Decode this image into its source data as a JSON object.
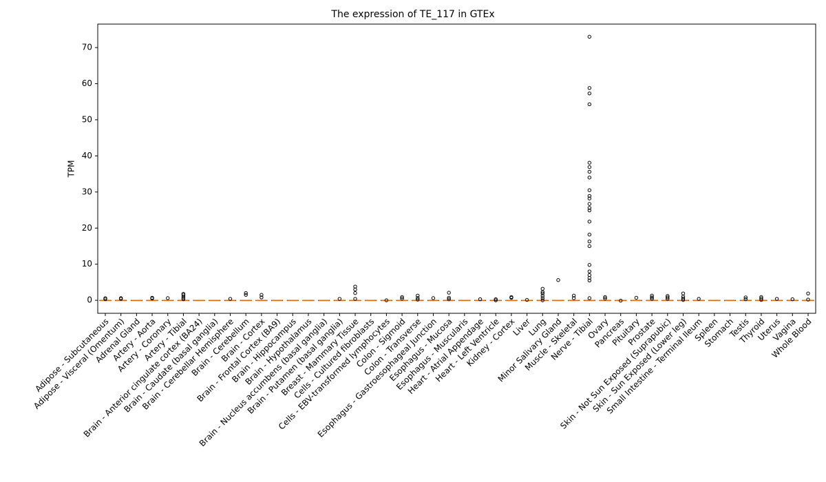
{
  "chart_data": {
    "type": "box",
    "title": "The expression of TE_117 in GTEx",
    "y_label": "TPM",
    "categories": [
      "Adipose - Subcutaneous",
      "Adipose - Visceral (Omentum)",
      "Adrenal Gland",
      "Artery - Aorta",
      "Artery - Coronary",
      "Artery - Tibial",
      "Brain - Anterior cingulate cortex (BA24)",
      "Brain - Caudate (basal ganglia)",
      "Brain - Cerebellar Hemisphere",
      "Brain - Cerebellum",
      "Brain - Cortex",
      "Brain - Frontal Cortex (BA9)",
      "Brain - Hippocampus",
      "Brain - Hypothalamus",
      "Brain - Nucleus accumbens (basal ganglia)",
      "Brain - Putamen (basal ganglia)",
      "Breast - Mammary Tissue",
      "Cells - Cultured fibroblasts",
      "Cells - EBV-transformed lymphocytes",
      "Colon - Sigmoid",
      "Colon - Transverse",
      "Esophagus - Gastroesophageal Junction",
      "Esophagus - Mucosa",
      "Esophagus - Muscularis",
      "Heart - Atrial Appendage",
      "Heart - Left Ventricle",
      "Kidney - Cortex",
      "Liver",
      "Lung",
      "Minor Salivary Gland",
      "Muscle - Skeletal",
      "Nerve - Tibial",
      "Ovary",
      "Pancreas",
      "Pituitary",
      "Prostate",
      "Skin - Not Sun Exposed (Suprapubic)",
      "Skin - Sun Exposed (Lower leg)",
      "Small Intestine - Terminal Ileum",
      "Spleen",
      "Stomach",
      "Testis",
      "Thyroid",
      "Uterus",
      "Vagina",
      "Whole Blood"
    ],
    "q1": [
      0,
      0,
      0,
      0,
      0,
      0,
      0,
      0,
      0,
      0,
      0,
      0,
      0,
      0,
      0,
      0,
      0,
      0,
      0,
      0,
      0,
      0,
      0,
      0,
      0,
      0,
      0,
      0,
      0,
      0,
      0,
      0,
      0,
      0,
      0,
      0,
      0,
      0,
      0,
      0,
      0,
      0,
      0,
      0,
      0,
      0
    ],
    "median": [
      0,
      0,
      0,
      0,
      0,
      0,
      0,
      0,
      0,
      0,
      0,
      0,
      0,
      0,
      0,
      0,
      0,
      0,
      0,
      0,
      0,
      0,
      0,
      0,
      0,
      0,
      0,
      0,
      0,
      0,
      0,
      0,
      0,
      0,
      0,
      0,
      0,
      0,
      0,
      0,
      0,
      0,
      0,
      0,
      0,
      0
    ],
    "q3": [
      0,
      0,
      0,
      0,
      0,
      0,
      0,
      0,
      0,
      0,
      0,
      0,
      0,
      0,
      0,
      0,
      0,
      0,
      0,
      0,
      0,
      0,
      0,
      0,
      0,
      0,
      0,
      0,
      0,
      0,
      0,
      0,
      0,
      0,
      0,
      0,
      0,
      0,
      0,
      0,
      0,
      0,
      0,
      0,
      0,
      0
    ],
    "outliers": [
      [
        0.3,
        0.6
      ],
      [
        0.4,
        0.6
      ],
      [],
      [
        0.5,
        0.7
      ],
      [
        0.6
      ],
      [
        0.3,
        0.6,
        1.0,
        1.5,
        1.8
      ],
      [],
      [],
      [
        0.4
      ],
      [
        1.5,
        2.0
      ],
      [
        0.8,
        1.5
      ],
      [],
      [],
      [],
      [],
      [
        0.4
      ],
      [
        0.4,
        2.0,
        3.0,
        3.8
      ],
      [],
      [
        0
      ],
      [
        0.5,
        0.9
      ],
      [
        0.2,
        0.6,
        1.3
      ],
      [
        0.6
      ],
      [
        0.3,
        0.7,
        2.1
      ],
      [],
      [
        0.3
      ],
      [
        0,
        0.3
      ],
      [
        0.7,
        0.9
      ],
      [
        0.1
      ],
      [
        0,
        0.6,
        1.2,
        1.9,
        2.3,
        3.2
      ],
      [
        5.6
      ],
      [
        0.6,
        1.3
      ],
      [
        0.6,
        5.5,
        6.2,
        7.0,
        8.0,
        9.8,
        15,
        16.3,
        18.2,
        21.8,
        24.9,
        25.6,
        26.7,
        28.2,
        28.9,
        30.5,
        34,
        35.6,
        36.9,
        38.1,
        54.3,
        57.3,
        58.8,
        73
      ],
      [
        0.5,
        0.9
      ],
      [
        -0.1
      ],
      [
        0.7
      ],
      [
        0.4,
        0.8,
        1.3
      ],
      [
        0.4,
        0.8,
        1.2
      ],
      [
        0.1,
        0.5,
        1.0,
        1.9
      ],
      [
        0.4
      ],
      [],
      [],
      [
        0.3,
        0.8
      ],
      [
        0.1,
        0.5,
        0.9
      ],
      [
        0.4
      ],
      [
        0.3
      ],
      [
        0.2,
        1.9
      ]
    ],
    "ylim": [
      -3.6,
      76.5
    ],
    "yticks": [
      0,
      10,
      20,
      30,
      40,
      50,
      60,
      70
    ]
  }
}
